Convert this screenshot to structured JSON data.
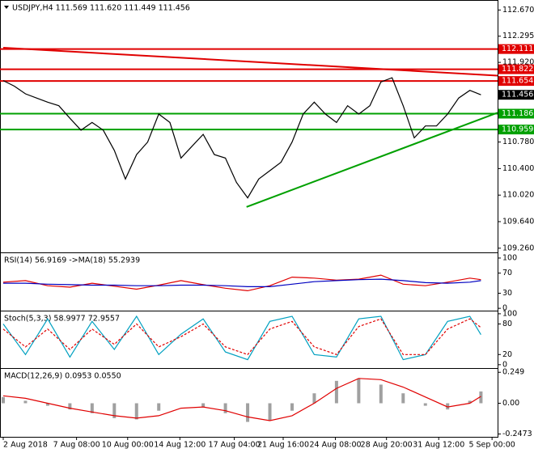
{
  "chart_data": [
    {
      "type": "line",
      "title": "USDJPY,H4  111.569 111.620 111.449 111.456",
      "xlim": [
        0,
        44.5
      ],
      "ylim": [
        109.2,
        112.79
      ],
      "yticks": [
        {
          "value": 112.67,
          "label": "112.670"
        },
        112.295,
        {
          "value": 111.92,
          "label": "111.920"
        },
        {
          "value": 110.78,
          "label": "110.780"
        },
        {
          "value": 110.4,
          "label": "110.400"
        },
        {
          "value": 110.02,
          "label": "110.020"
        },
        {
          "value": 109.64,
          "label": "109.640"
        },
        {
          "value": 109.26,
          "label": "109.260"
        }
      ],
      "series": [
        {
          "color": "#000000",
          "values": [
            111.66,
            111.58,
            111.47,
            111.41,
            111.35,
            111.3,
            111.12,
            110.95,
            111.06,
            110.95,
            110.66,
            110.25,
            110.6,
            110.78,
            111.18,
            111.06,
            110.55,
            110.72,
            110.89,
            110.6,
            110.55,
            110.2,
            109.98,
            110.25,
            110.37,
            110.49,
            110.78,
            111.18,
            111.35,
            111.18,
            111.06,
            111.3,
            111.18,
            111.3,
            111.64,
            111.7,
            111.3,
            110.84,
            111.01,
            111.01,
            111.18,
            111.41,
            111.52,
            111.456
          ]
        }
      ],
      "levels": [
        {
          "value": 112.111,
          "color": "#e00000"
        },
        {
          "value": 111.822,
          "color": "#e00000"
        },
        {
          "value": 111.654,
          "color": "#e00000"
        },
        {
          "value": 111.456,
          "color": "#000000"
        },
        {
          "value": 111.186,
          "color": "#00a000"
        },
        {
          "value": 110.959,
          "color": "#00a000"
        }
      ],
      "trend_lines": [
        {
          "color": "#e00000",
          "start": [
            0,
            112.13
          ],
          "end": [
            44.5,
            111.73
          ]
        },
        {
          "color": "#00a000",
          "start": [
            21.9,
            109.85
          ],
          "end": [
            44.5,
            111.2
          ]
        }
      ]
    },
    {
      "type": "line",
      "title": "RSI(14) 56.9169 ->MA(18) 55.2939",
      "xlim": [
        0,
        44.5
      ],
      "ylim": [
        -3,
        108
      ],
      "yticks": [
        100,
        70,
        30,
        0
      ],
      "x": [
        0,
        2,
        4,
        6,
        8,
        10,
        12,
        14,
        16,
        18,
        20,
        22,
        24,
        26,
        28,
        30,
        32,
        34,
        36,
        38,
        40,
        42,
        43
      ],
      "series": [
        {
          "color": "#e00000",
          "values": [
            52,
            55,
            45,
            42,
            50,
            44,
            38,
            46,
            55,
            47,
            40,
            35,
            45,
            62,
            60,
            56,
            58,
            66,
            48,
            45,
            52,
            60,
            57
          ]
        },
        {
          "color": "#0000c0",
          "values": [
            50,
            50,
            48,
            47,
            46,
            46,
            45,
            45,
            46,
            46,
            45,
            43,
            43,
            48,
            53,
            55,
            57,
            58,
            55,
            51,
            50,
            52,
            55
          ]
        }
      ]
    },
    {
      "type": "line",
      "title": "Stoch(5,3,3) 58.9977 72.9557",
      "xlim": [
        0,
        44.5
      ],
      "ylim": [
        -5,
        103
      ],
      "yticks": [
        100,
        80,
        20,
        0
      ],
      "x": [
        0,
        2,
        4,
        6,
        8,
        10,
        12,
        14,
        16,
        18,
        20,
        22,
        24,
        26,
        28,
        30,
        32,
        34,
        36,
        38,
        40,
        42,
        43
      ],
      "series": [
        {
          "color": "#00a0c0",
          "values": [
            80,
            20,
            90,
            15,
            85,
            30,
            95,
            20,
            60,
            90,
            25,
            10,
            85,
            95,
            20,
            15,
            90,
            95,
            10,
            20,
            85,
            95,
            59
          ]
        },
        {
          "color": "#e00000",
          "dashed": true,
          "values": [
            70,
            35,
            70,
            30,
            70,
            40,
            80,
            35,
            55,
            80,
            35,
            20,
            70,
            85,
            35,
            20,
            75,
            90,
            20,
            20,
            70,
            90,
            73
          ]
        }
      ]
    },
    {
      "type": "bar",
      "title": "MACD(12,26,9) 0.0953 0.0550",
      "xlim": [
        0,
        44.5
      ],
      "ylim": [
        -0.27,
        0.27
      ],
      "yticks": [
        0.249,
        {
          "value": 0,
          "label": "0.00"
        },
        -0.2473
      ],
      "xticks": [
        {
          "value": 0,
          "label": "2 Aug 2018"
        },
        {
          "value": 6.6,
          "label": "7 Aug 08:00"
        },
        {
          "value": 11.2,
          "label": "10 Aug 00:00"
        },
        {
          "value": 15.9,
          "label": "14 Aug 12:00"
        },
        {
          "value": 20.8,
          "label": "17 Aug 04:00"
        },
        {
          "value": 25.2,
          "label": "21 Aug 16:00"
        },
        {
          "value": 29.9,
          "label": "24 Aug 08:00"
        },
        {
          "value": 34.5,
          "label": "28 Aug 20:00"
        },
        {
          "value": 39.2,
          "label": "31 Aug 12:00"
        },
        {
          "value": 44.0,
          "label": "5 Sep 00:00"
        }
      ],
      "x": [
        0,
        2,
        4,
        6,
        8,
        10,
        12,
        14,
        16,
        18,
        20,
        22,
        24,
        26,
        28,
        30,
        32,
        34,
        36,
        38,
        40,
        42,
        43
      ],
      "series": [
        {
          "type": "bar",
          "color": "#a0a0a0",
          "values": [
            0.05,
            0.02,
            -0.02,
            -0.05,
            -0.08,
            -0.12,
            -0.13,
            -0.06,
            0,
            -0.03,
            -0.08,
            -0.15,
            -0.14,
            -0.06,
            0.08,
            0.18,
            0.2,
            0.15,
            0.08,
            -0.02,
            -0.05,
            0.02,
            0.095
          ]
        },
        {
          "type": "line",
          "color": "#e00000",
          "values": [
            0.06,
            0.04,
            0.0,
            -0.04,
            -0.07,
            -0.1,
            -0.12,
            -0.1,
            -0.04,
            -0.03,
            -0.06,
            -0.11,
            -0.14,
            -0.1,
            0.0,
            0.12,
            0.2,
            0.19,
            0.13,
            0.05,
            -0.03,
            0.0,
            0.055
          ]
        }
      ]
    }
  ]
}
